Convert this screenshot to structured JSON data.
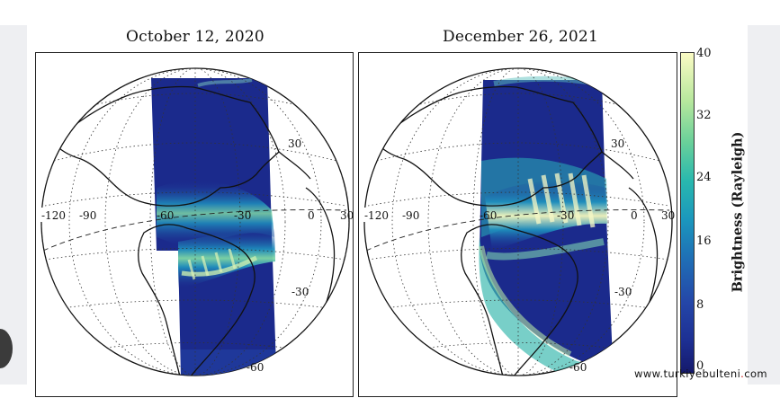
{
  "panels": [
    {
      "title": "October 12, 2020"
    },
    {
      "title": "December 26, 2021"
    }
  ],
  "longitude_labels": [
    "-120",
    "-90",
    "-60",
    "-30",
    "0",
    "30"
  ],
  "latitude_labels": [
    "30",
    "-30",
    "-60"
  ],
  "colorbar": {
    "label": "Brightness (Rayleigh)",
    "ticks": [
      "40",
      "32",
      "24",
      "16",
      "8",
      "0"
    ],
    "range": [
      0,
      40
    ]
  },
  "watermark": {
    "left": "www.turkiyebulteni",
    "dot": ".",
    "right": "com"
  },
  "colors": {
    "ocean_dark": "#1b2a8c",
    "glow_mid": "#2bb3b0",
    "glow_bright": "#f6f8c0"
  }
}
